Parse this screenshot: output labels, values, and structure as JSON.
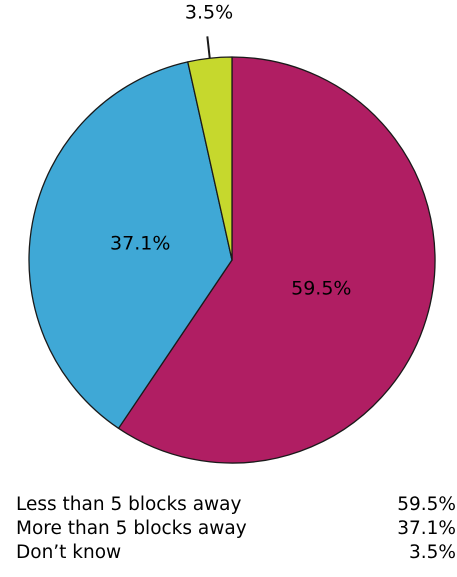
{
  "chart_data": {
    "type": "pie",
    "start_angle": "12 o'clock",
    "direction": "clockwise",
    "slices": [
      {
        "label": "Less than 5 blocks away",
        "value": 59.5,
        "display": "59.5%",
        "color": "#b01e63"
      },
      {
        "label": "More than 5 blocks away",
        "value": 37.1,
        "display": "37.1%",
        "color": "#3fa8d6"
      },
      {
        "label": "Don’t know",
        "value": 3.5,
        "display": "3.5%",
        "color": "#c6d82d"
      }
    ],
    "legend_placement": "bottom"
  }
}
